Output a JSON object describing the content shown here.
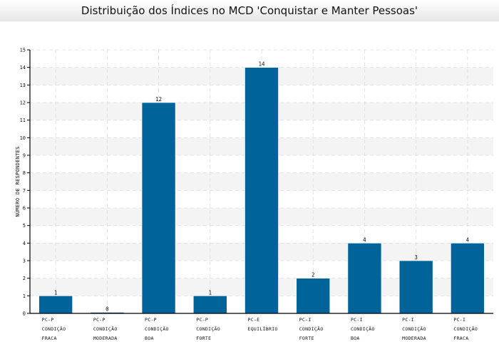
{
  "chart_data": {
    "type": "bar",
    "title": "Distribuição dos Índices no MCD 'Conquistar e Manter Pessoas'",
    "xlabel": "",
    "ylabel": "NÚMERO DE RESPONDENTES",
    "ylim": [
      0,
      15
    ],
    "yticks": [
      "0",
      "1",
      "2",
      "3",
      "4",
      "5",
      "6",
      "7",
      "8",
      "9",
      "10",
      "11",
      "12",
      "13",
      "14",
      "15"
    ],
    "categories": [
      [
        "PC-P",
        "CONDIÇÃO",
        "FRACA"
      ],
      [
        "PC-P",
        "CONDIÇÃO",
        "MODERADA"
      ],
      [
        "PC-P",
        "CONDIÇÃO",
        "BOA"
      ],
      [
        "PC-P",
        "CONDIÇÃO",
        "FORTE"
      ],
      [
        "PC-E",
        "EQUILÍBRIO"
      ],
      [
        "PC-I",
        "CONDIÇÃO",
        "FORTE"
      ],
      [
        "PC-I",
        "CONDIÇÃO",
        "BOA"
      ],
      [
        "PC-I",
        "CONDIÇÃO",
        "MODERADA"
      ],
      [
        "PC-I",
        "CONDIÇÃO",
        "FRACA"
      ]
    ],
    "values": [
      1,
      0,
      12,
      1,
      14,
      2,
      4,
      3,
      4
    ],
    "data_labels": [
      "1",
      "0",
      "12",
      "1",
      "14",
      "2",
      "4",
      "3",
      "4"
    ],
    "grid": true,
    "legend": "none",
    "colors": {
      "bar": "#00649b",
      "grid": "#dddddd",
      "band": "#f4f4f4",
      "axis": "#000000"
    }
  }
}
